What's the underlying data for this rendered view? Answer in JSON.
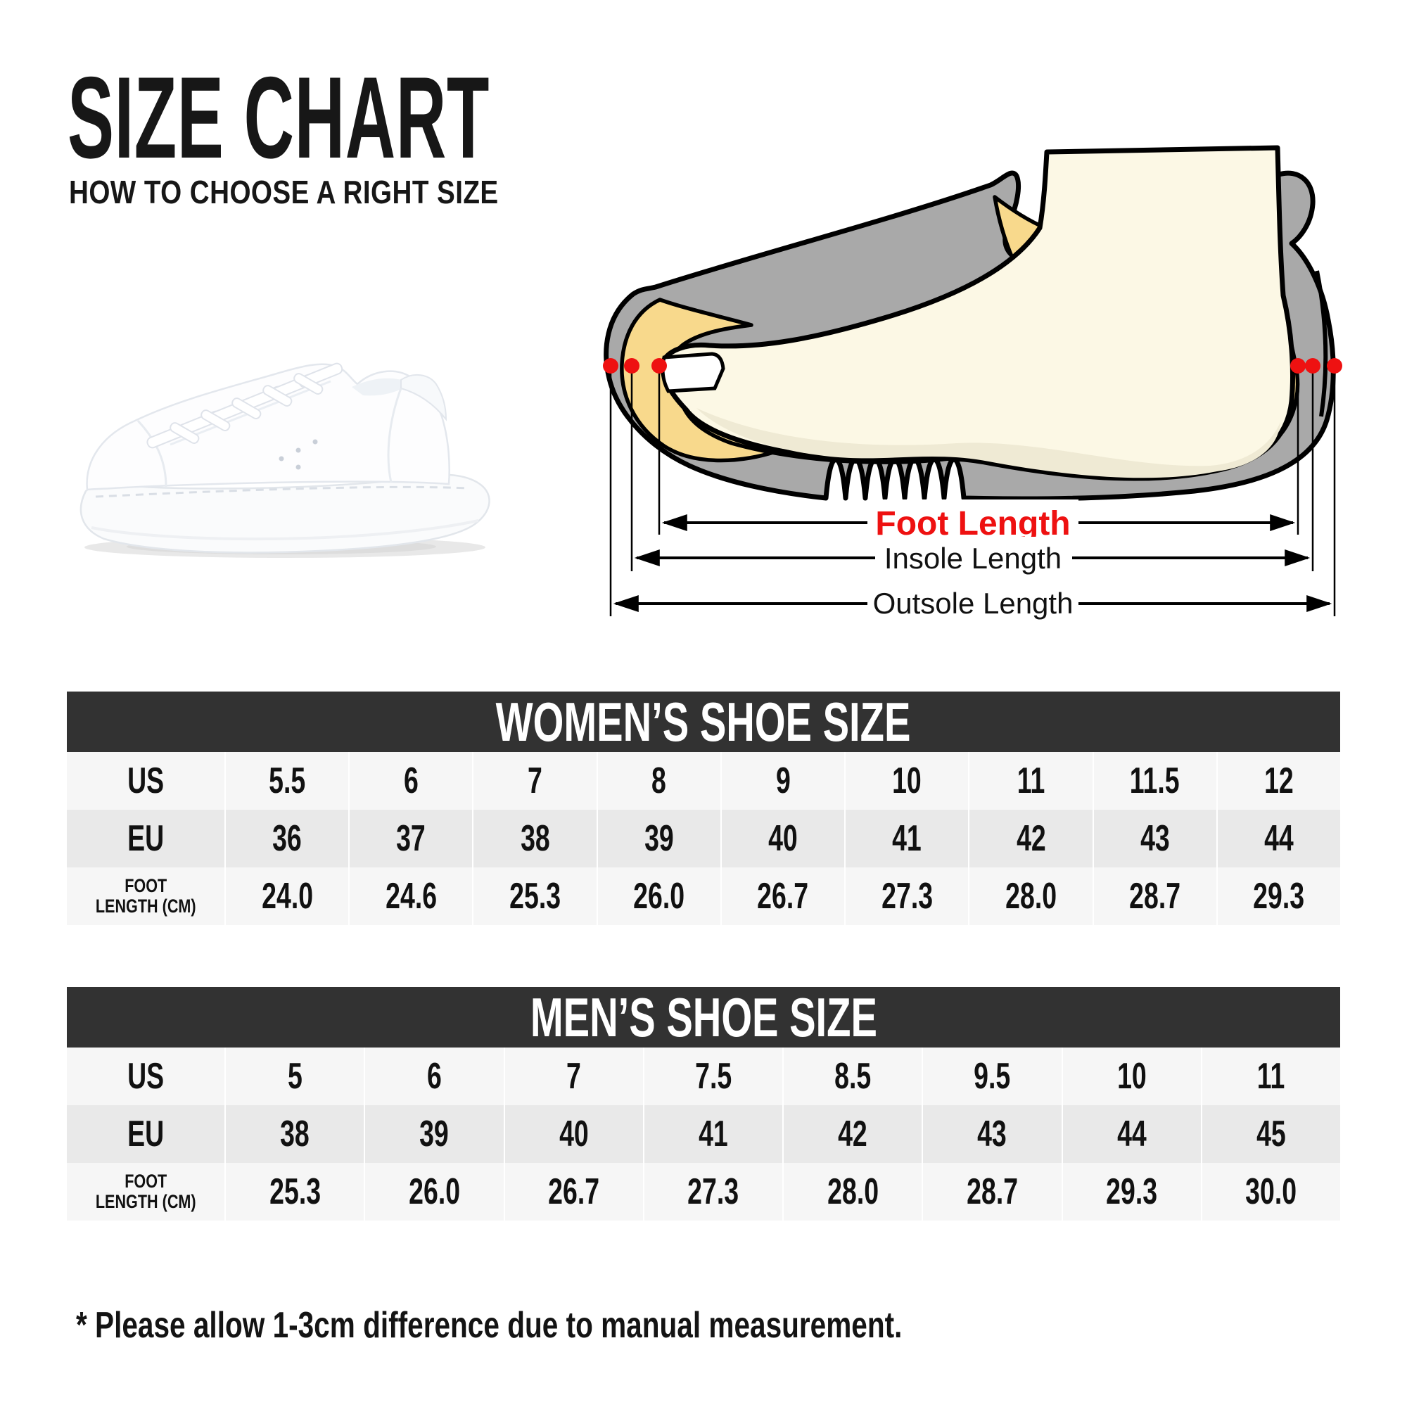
{
  "header": {
    "title": "SIZE CHART",
    "subtitle": "HOW TO CHOOSE A RIGHT SIZE"
  },
  "sneaker": {
    "description": "white platform sneaker side view"
  },
  "diagram": {
    "labels": {
      "foot": "Foot Length",
      "insole": "Insole Length",
      "outsole": "Outsole Length"
    },
    "colors": {
      "shoe_gray": "#a9a9a9",
      "insole_yellow": "#f8d98c",
      "foot_cream": "#fcf8e5",
      "foot_shade": "#efead4",
      "outline_black": "#000000",
      "marker_red": "#ee1111"
    }
  },
  "tables": {
    "women": {
      "title": "WOMEN’S SHOE SIZE",
      "rows": [
        {
          "label": "US",
          "values": [
            "5.5",
            "6",
            "7",
            "8",
            "9",
            "10",
            "11",
            "11.5",
            "12"
          ]
        },
        {
          "label": "EU",
          "values": [
            "36",
            "37",
            "38",
            "39",
            "40",
            "41",
            "42",
            "43",
            "44"
          ]
        },
        {
          "label": "FOOT LENGTH (CM)",
          "label_lines": [
            "FOOT",
            "LENGTH (CM)"
          ],
          "values": [
            "24.0",
            "24.6",
            "25.3",
            "26.0",
            "26.7",
            "27.3",
            "28.0",
            "28.7",
            "29.3"
          ]
        }
      ]
    },
    "men": {
      "title": "MEN’S SHOE SIZE",
      "rows": [
        {
          "label": "US",
          "values": [
            "5",
            "6",
            "7",
            "7.5",
            "8.5",
            "9.5",
            "10",
            "11"
          ]
        },
        {
          "label": "EU",
          "values": [
            "38",
            "39",
            "40",
            "41",
            "42",
            "43",
            "44",
            "45"
          ]
        },
        {
          "label": "FOOT LENGTH (CM)",
          "label_lines": [
            "FOOT",
            "LENGTH (CM)"
          ],
          "values": [
            "25.3",
            "26.0",
            "26.7",
            "27.3",
            "28.0",
            "28.7",
            "29.3",
            "30.0"
          ]
        }
      ]
    }
  },
  "note": {
    "text": "* Please allow 1-3cm difference due to manual measurement."
  }
}
